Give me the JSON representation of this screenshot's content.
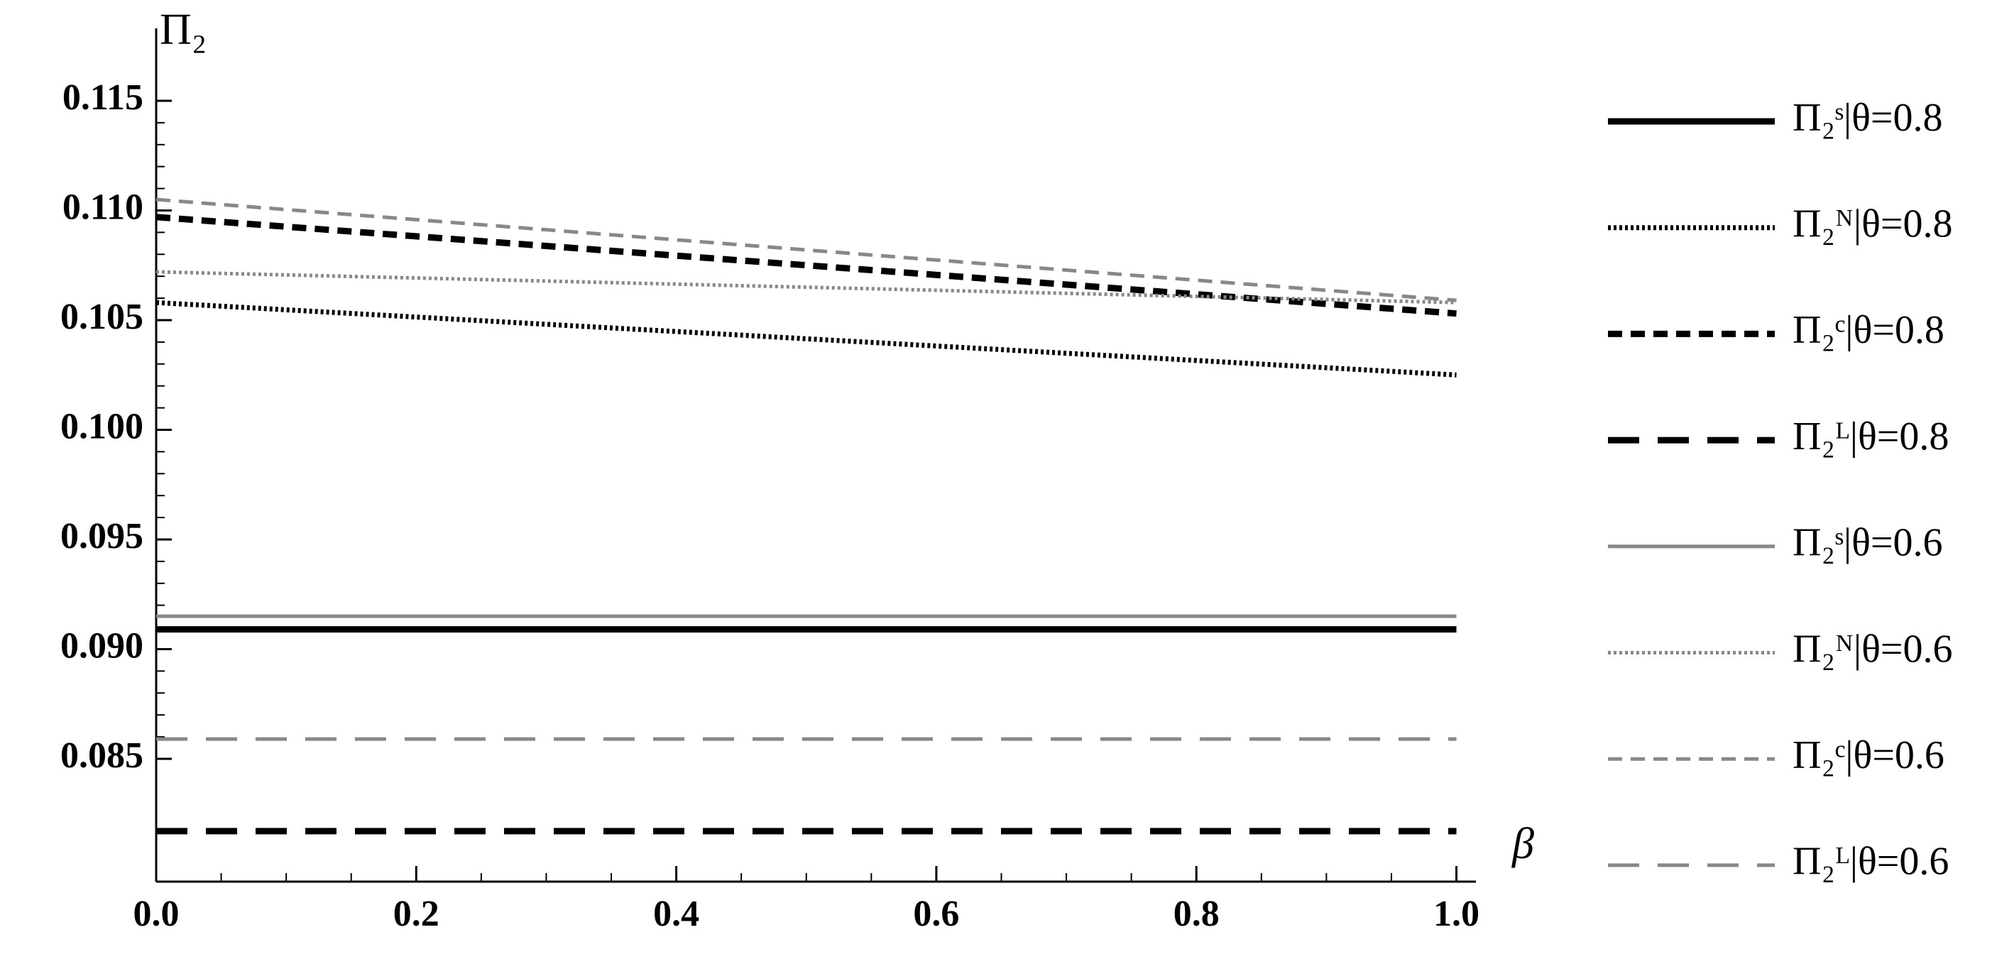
{
  "chart_data": {
    "type": "line",
    "x_label": "β",
    "y_label": "Π₂",
    "x": [
      0,
      1
    ],
    "xlim": [
      0,
      1.015
    ],
    "xticks": [
      {
        "value": 0,
        "label": "0.0"
      },
      0.2,
      0.4,
      0.6,
      0.8,
      {
        "value": 1,
        "label": "1.0"
      }
    ],
    "ylim": [
      0.0794,
      0.1183
    ],
    "yticks": [
      {
        "value": 0.085,
        "label": "0.085"
      },
      {
        "value": 0.09,
        "label": "0.090"
      },
      {
        "value": 0.095,
        "label": "0.095"
      },
      {
        "value": 0.1,
        "label": "0.100"
      },
      {
        "value": 0.105,
        "label": "0.105"
      },
      {
        "value": 0.11,
        "label": "0.110"
      },
      {
        "value": 0.115,
        "label": "0.115"
      }
    ],
    "legend": "right",
    "series": [
      {
        "name": "Π₂ˢ|θ=0.8",
        "color": "#000000",
        "dash": "solid",
        "values": [
          0.0909,
          0.0909
        ]
      },
      {
        "name": "Π₂ᴺ|θ=0.8",
        "color": "#000000",
        "dash": "dotted",
        "values": [
          0.1058,
          0.1025
        ]
      },
      {
        "name": "Π₂ᶜ|θ=0.8",
        "color": "#000000",
        "dash": "dashed",
        "values": [
          0.1097,
          0.1053
        ]
      },
      {
        "name": "Π₂ᴸ|θ=0.8",
        "color": "#000000",
        "dash": "longdash",
        "values": [
          0.0817,
          0.0817
        ]
      },
      {
        "name": "Π₂ˢ|θ=0.6",
        "color": "#888888",
        "dash": "solid",
        "values": [
          0.0915,
          0.0915
        ]
      },
      {
        "name": "Π₂ᴺ|θ=0.6",
        "color": "#888888",
        "dash": "dotted",
        "values": [
          0.1072,
          0.1058
        ]
      },
      {
        "name": "Π₂ᶜ|θ=0.6",
        "color": "#888888",
        "dash": "dashed",
        "values": [
          0.1105,
          0.1059
        ]
      },
      {
        "name": "Π₂ᴸ|θ=0.6",
        "color": "#888888",
        "dash": "longdash",
        "values": [
          0.0859,
          0.0859
        ]
      }
    ]
  }
}
